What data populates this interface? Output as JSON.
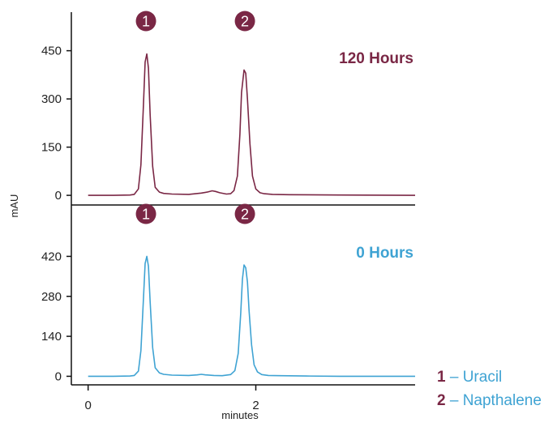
{
  "chart_data": [
    {
      "type": "line",
      "title": "120 Hours",
      "color": "#7a2745",
      "ylim": [
        -30,
        570
      ],
      "yticks": [
        "0",
        "150",
        "300",
        "450"
      ],
      "ytick_values": [
        0,
        150,
        300,
        450
      ],
      "xlim": [
        -0.2,
        3.9
      ],
      "series": [
        {
          "x": [
            0,
            0.3,
            0.5,
            0.55,
            0.6,
            0.63,
            0.66,
            0.68,
            0.7,
            0.72,
            0.74,
            0.77,
            0.8,
            0.85,
            0.9,
            1.0,
            1.2,
            1.35,
            1.42,
            1.48,
            1.52,
            1.57,
            1.65,
            1.7,
            1.74,
            1.78,
            1.81,
            1.83,
            1.86,
            1.88,
            1.9,
            1.93,
            1.96,
            2.0,
            2.05,
            2.1,
            2.2,
            2.4,
            3.0,
            3.9
          ],
          "y": [
            0,
            0,
            1,
            3,
            20,
            95,
            280,
            415,
            440,
            395,
            250,
            90,
            25,
            10,
            6,
            4,
            3,
            7,
            10,
            14,
            12,
            8,
            4,
            5,
            15,
            60,
            190,
            320,
            390,
            380,
            300,
            160,
            60,
            20,
            8,
            5,
            3,
            2,
            1,
            0
          ]
        }
      ],
      "badges": [
        {
          "label": "1",
          "x": 0.69
        },
        {
          "label": "2",
          "x": 1.87
        }
      ]
    },
    {
      "type": "line",
      "title": "0 Hours",
      "color": "#3fa3d3",
      "ylim": [
        -30,
        600
      ],
      "yticks": [
        "0",
        "140",
        "280",
        "420"
      ],
      "ytick_values": [
        0,
        140,
        280,
        420
      ],
      "xlim": [
        -0.2,
        3.9
      ],
      "xticks": [
        "0",
        "2"
      ],
      "xtick_values": [
        0,
        2
      ],
      "xlabel": "minutes",
      "series": [
        {
          "x": [
            0,
            0.3,
            0.5,
            0.55,
            0.6,
            0.63,
            0.66,
            0.68,
            0.7,
            0.72,
            0.74,
            0.77,
            0.8,
            0.85,
            0.9,
            1.0,
            1.2,
            1.3,
            1.35,
            1.4,
            1.5,
            1.6,
            1.7,
            1.75,
            1.79,
            1.82,
            1.84,
            1.86,
            1.88,
            1.9,
            1.92,
            1.95,
            1.98,
            2.02,
            2.07,
            2.15,
            2.3,
            2.6,
            3.0,
            3.9
          ],
          "y": [
            0,
            0,
            1,
            3,
            18,
            90,
            270,
            395,
            420,
            385,
            260,
            100,
            30,
            12,
            7,
            4,
            3,
            5,
            7,
            5,
            3,
            2,
            6,
            20,
            80,
            220,
            340,
            390,
            380,
            330,
            230,
            110,
            40,
            15,
            6,
            3,
            2,
            1,
            0,
            0
          ]
        }
      ],
      "badges": [
        {
          "label": "1",
          "x": 0.69
        },
        {
          "label": "2",
          "x": 1.87
        }
      ]
    }
  ],
  "ylabel": "mAU",
  "legend": [
    {
      "num": "1",
      "text": " – Uracil"
    },
    {
      "num": "2",
      "text": " – Napthalene"
    }
  ],
  "colors": {
    "burgundy": "#7a2745",
    "blue": "#3fa3d3",
    "axis": "#111111"
  }
}
